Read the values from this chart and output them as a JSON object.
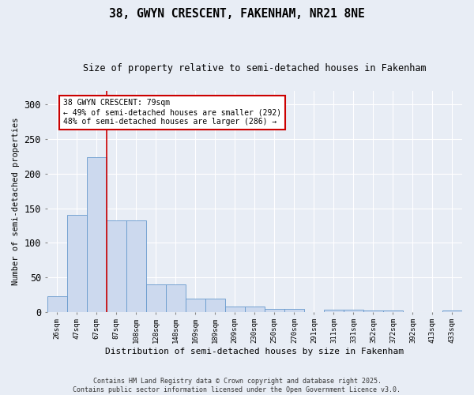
{
  "title1": "38, GWYN CRESCENT, FAKENHAM, NR21 8NE",
  "title2": "Size of property relative to semi-detached houses in Fakenham",
  "xlabel": "Distribution of semi-detached houses by size in Fakenham",
  "ylabel": "Number of semi-detached properties",
  "bar_labels": [
    "26sqm",
    "47sqm",
    "67sqm",
    "87sqm",
    "108sqm",
    "128sqm",
    "148sqm",
    "169sqm",
    "189sqm",
    "209sqm",
    "230sqm",
    "250sqm",
    "270sqm",
    "291sqm",
    "311sqm",
    "331sqm",
    "352sqm",
    "372sqm",
    "392sqm",
    "413sqm",
    "433sqm"
  ],
  "bar_values": [
    22,
    140,
    224,
    132,
    132,
    39,
    39,
    19,
    19,
    7,
    7,
    4,
    4,
    0,
    3,
    3,
    2,
    2,
    0,
    0,
    2
  ],
  "bar_color": "#ccd9ee",
  "bar_edge_color": "#6699cc",
  "background_color": "#e8edf5",
  "grid_color": "#ffffff",
  "red_line_x": 2.5,
  "annotation_title": "38 GWYN CRESCENT: 79sqm",
  "annotation_line1": "← 49% of semi-detached houses are smaller (292)",
  "annotation_line2": "48% of semi-detached houses are larger (286) →",
  "annotation_box_color": "#ffffff",
  "annotation_box_edge": "#cc0000",
  "footer": "Contains HM Land Registry data © Crown copyright and database right 2025.\nContains public sector information licensed under the Open Government Licence v3.0.",
  "ylim": [
    0,
    320
  ],
  "yticks": [
    0,
    50,
    100,
    150,
    200,
    250,
    300
  ]
}
